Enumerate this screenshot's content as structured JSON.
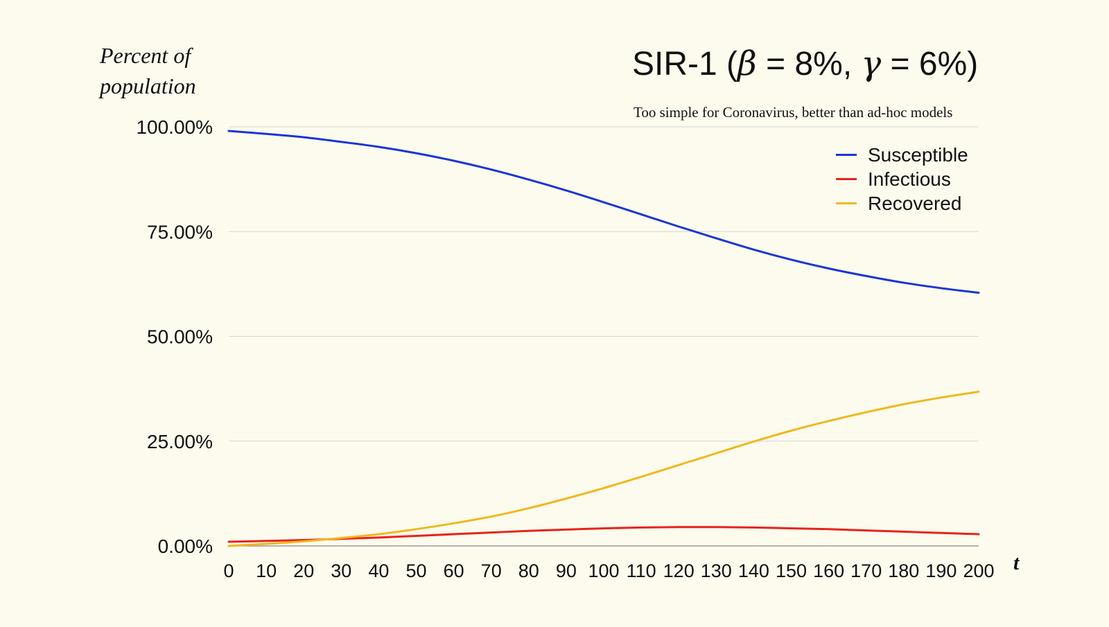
{
  "chart_data": {
    "type": "line",
    "title": {
      "prefix": "SIR-1 (",
      "beta_symbol": "β",
      "beta_text": " = 8%, ",
      "gamma_symbol": "γ",
      "gamma_text": " = 6%)"
    },
    "subtitle": "Too simple for Coronavirus, better than ad-hoc models",
    "ylabel": [
      "Percent of",
      "population"
    ],
    "xlabel": "t",
    "x": [
      0,
      10,
      20,
      30,
      40,
      50,
      60,
      70,
      80,
      90,
      100,
      110,
      120,
      130,
      140,
      150,
      160,
      170,
      180,
      190,
      200
    ],
    "xlim": [
      0,
      200
    ],
    "ylim": [
      0,
      100
    ],
    "yticks": [
      0,
      25,
      50,
      75,
      100
    ],
    "ytick_labels": [
      "0.00%",
      "25.00%",
      "50.00%",
      "75.00%",
      "100.00%"
    ],
    "xticks": [
      0,
      10,
      20,
      30,
      40,
      50,
      60,
      70,
      80,
      90,
      100,
      110,
      120,
      130,
      140,
      150,
      160,
      170,
      180,
      190,
      200
    ],
    "xtick_labels": [
      "0",
      "10",
      "20",
      "30",
      "40",
      "50",
      "60",
      "70",
      "80",
      "90",
      "100",
      "110",
      "120",
      "130",
      "140",
      "150",
      "160",
      "170",
      "180",
      "190",
      "200"
    ],
    "grid": "horizontal",
    "legend_position": "top-right",
    "series": [
      {
        "name": "Susceptible",
        "color": "#1a35d6",
        "values": [
          99.0,
          98.3,
          97.5,
          96.4,
          95.2,
          93.7,
          91.9,
          89.8,
          87.4,
          84.8,
          82.0,
          79.1,
          76.2,
          73.4,
          70.7,
          68.3,
          66.2,
          64.4,
          62.8,
          61.5,
          60.4
        ]
      },
      {
        "name": "Infectious",
        "color": "#e8231a",
        "values": [
          1.0,
          1.2,
          1.4,
          1.7,
          2.0,
          2.4,
          2.8,
          3.2,
          3.6,
          3.9,
          4.2,
          4.4,
          4.5,
          4.5,
          4.4,
          4.2,
          4.0,
          3.7,
          3.4,
          3.1,
          2.8
        ]
      },
      {
        "name": "Recovered",
        "color": "#f0b81c",
        "values": [
          0.0,
          0.5,
          1.1,
          1.9,
          2.8,
          4.0,
          5.4,
          7.0,
          9.0,
          11.3,
          13.8,
          16.5,
          19.3,
          22.1,
          24.9,
          27.5,
          29.8,
          31.9,
          33.8,
          35.4,
          36.8
        ]
      }
    ]
  }
}
